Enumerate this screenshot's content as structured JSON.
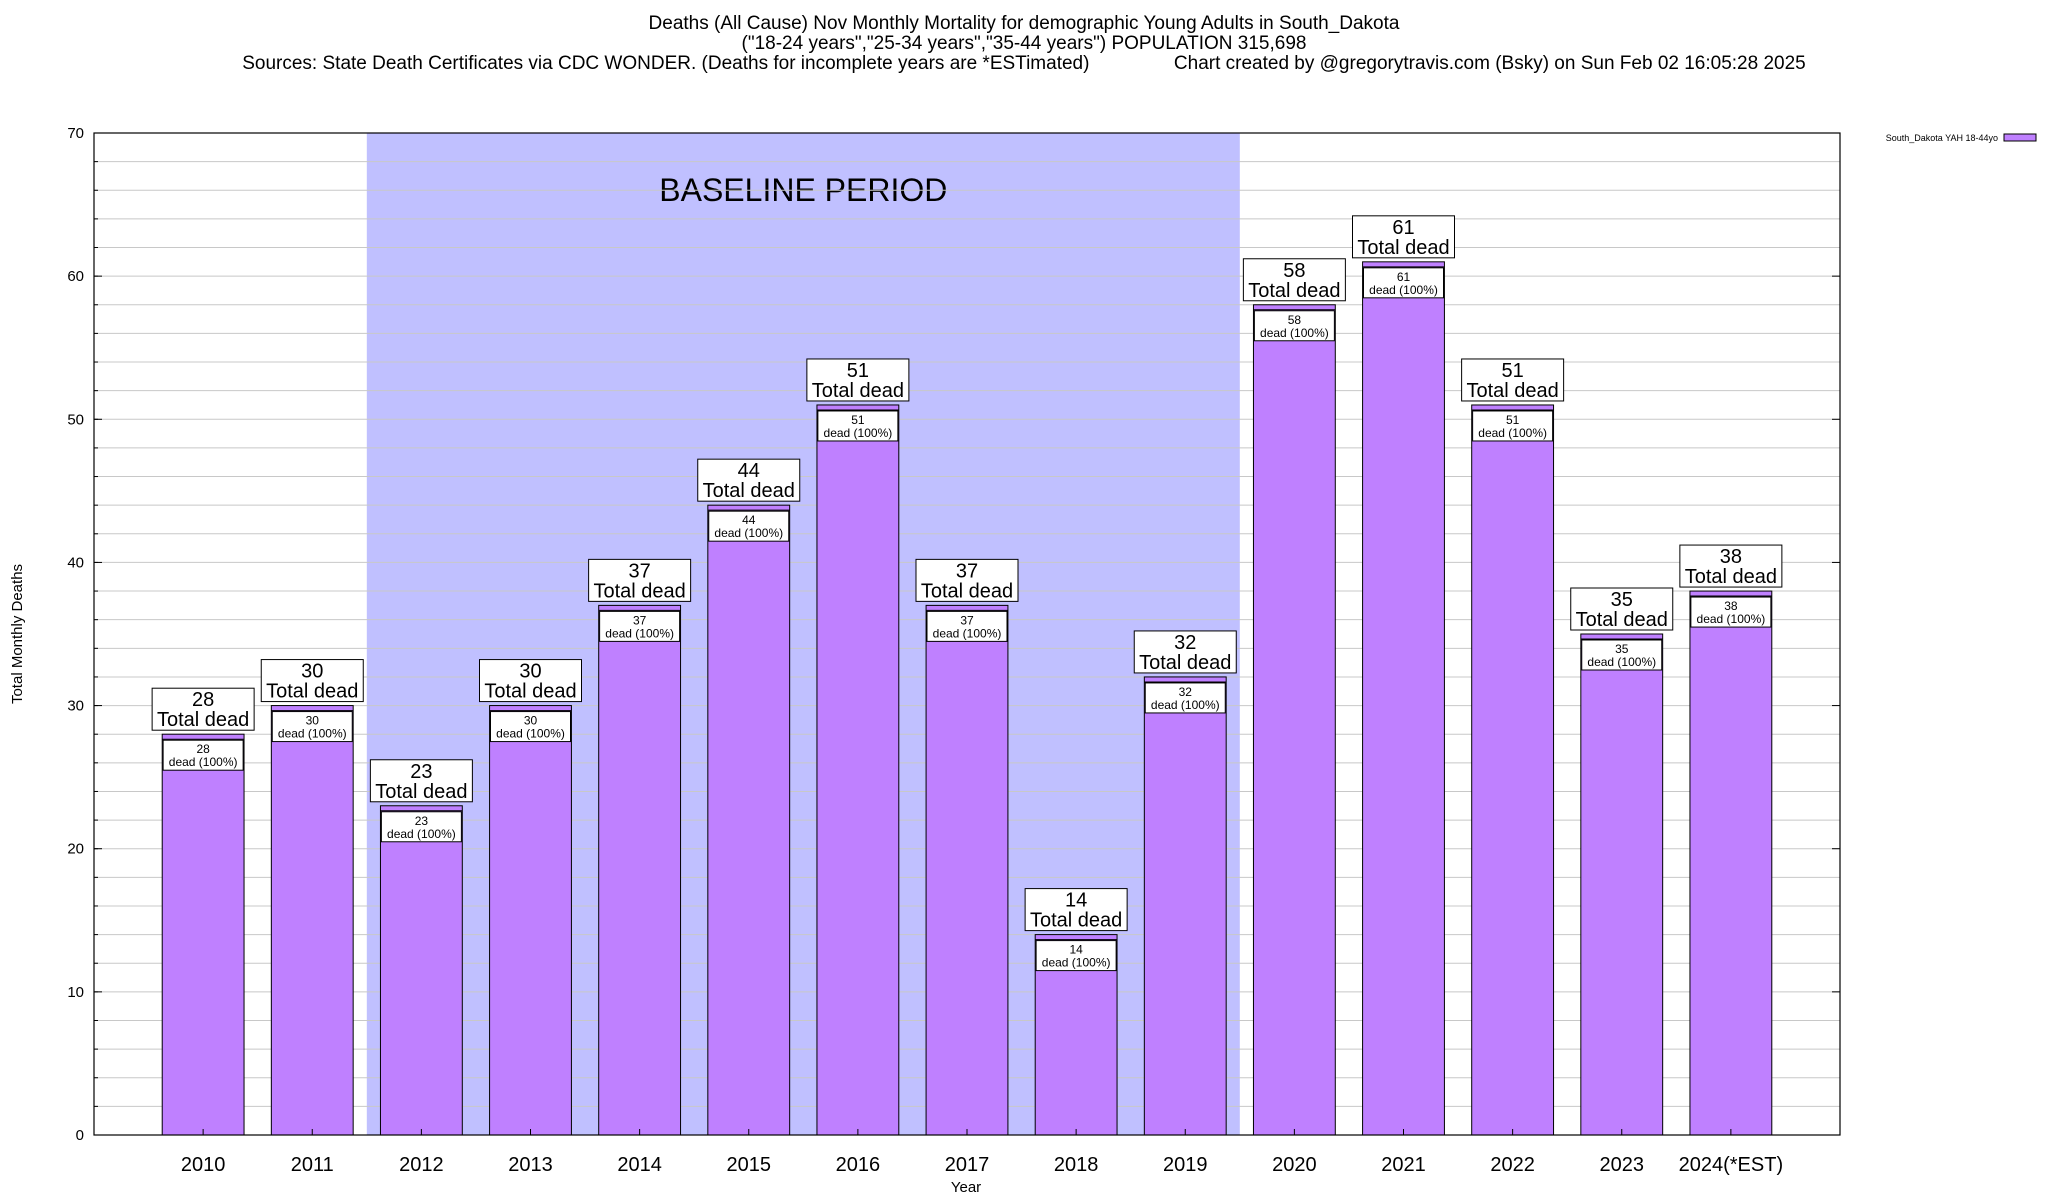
{
  "title": {
    "line1": "Deaths (All Cause) Nov Monthly Mortality for demographic Young Adults in South_Dakota",
    "line2": "(\"18-24 years\",\"25-34 years\",\"35-44 years\") POPULATION 315,698",
    "sources": "Sources: State Death Certificates via CDC WONDER. (Deaths for incomplete years are *ESTimated)",
    "credit": "Chart created by @gregorytravis.com (Bsky) on Sun Feb 02 16:05:28 2025"
  },
  "chart_data": {
    "type": "bar",
    "categories": [
      "2010",
      "2011",
      "2012",
      "2013",
      "2014",
      "2015",
      "2016",
      "2017",
      "2018",
      "2019",
      "2020",
      "2021",
      "2022",
      "2023",
      "2024(*EST)"
    ],
    "series": [
      {
        "name": "South_Dakota YAH 18-44yo",
        "values": [
          28,
          30,
          23,
          30,
          37,
          44,
          51,
          37,
          14,
          32,
          58,
          61,
          51,
          35,
          38
        ],
        "color": "#bf80ff"
      }
    ],
    "top_labels": [
      "28",
      "30",
      "23",
      "30",
      "37",
      "44",
      "51",
      "37",
      "14",
      "32",
      "58",
      "61",
      "51",
      "35",
      "38"
    ],
    "top_label_text": "Total dead",
    "inner_labels": [
      "28",
      "30",
      "23",
      "30",
      "37",
      "44",
      "51",
      "37",
      "14",
      "32",
      "58",
      "61",
      "51",
      "35",
      "38"
    ],
    "inner_label_text": "dead (100%)",
    "xlabel": "Year",
    "ylabel": "Total Monthly Deaths",
    "ylim": [
      0,
      70
    ],
    "yticks": [
      "0",
      "10",
      "20",
      "30",
      "40",
      "50",
      "60",
      "70"
    ],
    "grid": true,
    "legend": "top-right",
    "baseline_period": {
      "label": "BASELINE PERIOD",
      "start": "2012",
      "end": "2019",
      "color": "#c0c0ff"
    }
  }
}
